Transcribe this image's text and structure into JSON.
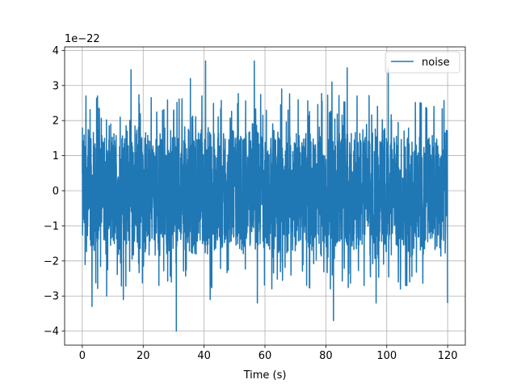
{
  "chart_data": {
    "type": "line",
    "title": "",
    "xlabel": "Time (s)",
    "ylabel": "",
    "offset_label": "1e−22",
    "xlim": [
      -5.8,
      125.8
    ],
    "ylim": [
      -4.4,
      4.1
    ],
    "xticks": [
      0,
      20,
      40,
      60,
      80,
      100,
      120
    ],
    "yticks": [
      -4,
      -3,
      -2,
      -1,
      0,
      1,
      2,
      3,
      4
    ],
    "grid": true,
    "legend_position": "top-right",
    "series": [
      {
        "name": "noise",
        "color": "#1f77b4",
        "x_range": [
          0,
          120
        ],
        "y_range": [
          -4.0,
          3.7
        ],
        "envelope_abs": 2.0,
        "peaks": [
          {
            "x": 1.2,
            "y": 2.7
          },
          {
            "x": 3.2,
            "y": -3.3
          },
          {
            "x": 5.0,
            "y": 2.7
          },
          {
            "x": 8.0,
            "y": -3.0
          },
          {
            "x": 16.0,
            "y": 3.45
          },
          {
            "x": 13.5,
            "y": -3.1
          },
          {
            "x": 30.9,
            "y": -4.0
          },
          {
            "x": 35.5,
            "y": 3.2
          },
          {
            "x": 40.5,
            "y": 3.7
          },
          {
            "x": 42.0,
            "y": -3.1
          },
          {
            "x": 56.5,
            "y": 3.7
          },
          {
            "x": 57.5,
            "y": -3.2
          },
          {
            "x": 65.5,
            "y": 2.9
          },
          {
            "x": 82.0,
            "y": 3.1
          },
          {
            "x": 82.5,
            "y": -3.7
          },
          {
            "x": 87.0,
            "y": 3.5
          },
          {
            "x": 96.5,
            "y": -3.2
          },
          {
            "x": 100.5,
            "y": 3.5
          },
          {
            "x": 104.5,
            "y": -2.8
          },
          {
            "x": 120.0,
            "y": -3.2
          }
        ]
      }
    ]
  }
}
